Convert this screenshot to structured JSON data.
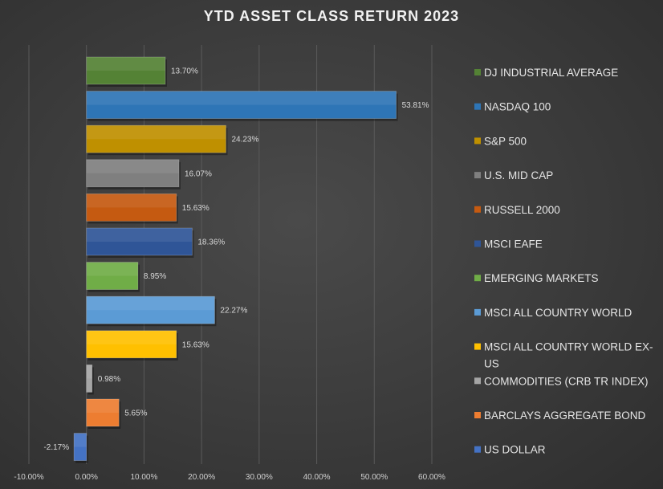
{
  "chart_data": {
    "type": "bar",
    "orientation": "horizontal",
    "title": "YTD ASSET CLASS RETURN 2023",
    "xlim": [
      -10,
      60
    ],
    "x_ticks": [
      "-10.00%",
      "0.00%",
      "10.00%",
      "20.00%",
      "30.00%",
      "40.00%",
      "50.00%",
      "60.00%"
    ],
    "grid": true,
    "legend_position": "right",
    "series": [
      {
        "name": "DJ INDUSTRIAL AVERAGE",
        "value": 13.7,
        "label": "13.70%",
        "color": "#548235"
      },
      {
        "name": "NASDAQ 100",
        "value": 53.81,
        "label": "53.81%",
        "color": "#2e75b6"
      },
      {
        "name": "S&P 500",
        "value": 24.23,
        "label": "24.23%",
        "color": "#bf9000"
      },
      {
        "name": "U.S. MID CAP",
        "value": 16.07,
        "label": "16.07%",
        "color": "#7f7f7f"
      },
      {
        "name": "RUSSELL 2000",
        "value": 15.63,
        "label": "15.63%",
        "color": "#c55a11"
      },
      {
        "name": "MSCI EAFE",
        "value": 18.36,
        "label": "18.36%",
        "color": "#2f5597"
      },
      {
        "name": "EMERGING MARKETS",
        "value": 8.95,
        "label": "8.95%",
        "color": "#70ad47"
      },
      {
        "name": "MSCI ALL COUNTRY WORLD",
        "value": 22.27,
        "label": "22.27%",
        "color": "#5b9bd5"
      },
      {
        "name": "MSCI ALL COUNTRY WORLD EX-US",
        "value": 15.63,
        "label": "15.63%",
        "color": "#ffc000"
      },
      {
        "name": "COMMODITIES (CRB TR INDEX)",
        "value": 0.98,
        "label": "0.98%",
        "color": "#a5a5a5"
      },
      {
        "name": "BARCLAYS AGGREGATE BOND",
        "value": 5.65,
        "label": "5.65%",
        "color": "#ed7d31"
      },
      {
        "name": "US DOLLAR",
        "value": -2.17,
        "label": "-2.17%",
        "color": "#4472c4"
      }
    ]
  }
}
